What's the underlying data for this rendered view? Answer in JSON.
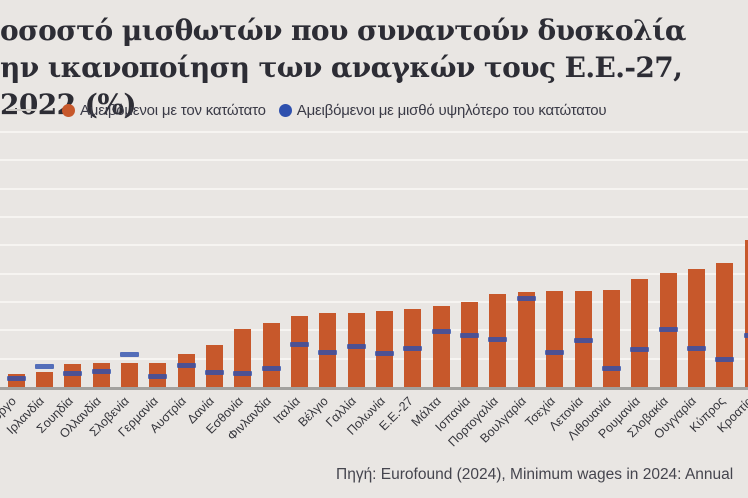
{
  "title": {
    "line1": "οσοστό μισθωτών που συναντούν δυσκολία",
    "line2": "ην ικανοποίηση των αναγκών τους Ε.Ε.-27, 2022 (%)"
  },
  "legend": [
    {
      "label": "Αμειβόμενοι με τον κατώτατο",
      "color": "#c7582b"
    },
    {
      "label": "Αμειβόμενοι με μισθό υψηλότερο του κατώτατου",
      "color": "#2e50ae"
    }
  ],
  "source": "Πηγή: Eurofound (2024), Minimum wages in 2024: Annual",
  "colors": {
    "background": "#e9e6e3",
    "gridline": "#f6f4f1",
    "axis_line": "#a3a19e",
    "bar_orange": "#c7582b",
    "tick_blue": "#2e50ae",
    "title_text": "#2d2d35",
    "label_text": "#36363c"
  },
  "chart_data": {
    "type": "bar",
    "title": "οσοστό μισθωτών που συναντούν δυσκολία ην ικανοποίηση των αναγκών τους Ε.Ε.-27, 2022 (%)",
    "xlabel": "",
    "ylabel": "",
    "ylim": [
      0,
      93
    ],
    "grid": true,
    "gridline_step": 10,
    "legend_position": "top",
    "categories": [
      "Λουξεμβούργο",
      "Ιρλανδία",
      "Σουηδία",
      "Ολλανδία",
      "Σλοβενία",
      "Γερμανία",
      "Αυστρία",
      "Δανία",
      "Εσθονία",
      "Φινλανδία",
      "Ιταλία",
      "Βέλγιο",
      "Γαλλία",
      "Πολωνία",
      "Ε.Ε.-27",
      "Μάλτα",
      "Ισπανία",
      "Πορτογαλία",
      "Βουλγαρία",
      "Τσεχία",
      "Λετονία",
      "Λιθουανία",
      "Ρουμανία",
      "Σλοβακία",
      "Ουγγαρία",
      "Κύπρος",
      "Κροατία"
    ],
    "series": [
      {
        "name": "Αμειβόμενοι με τον κατώτατο",
        "style": "bar",
        "color": "#c7582b",
        "values": [
          4.8,
          5.8,
          8.5,
          8.7,
          8.7,
          9,
          12,
          15.2,
          20.8,
          23,
          25.4,
          26.5,
          26.5,
          27,
          28,
          29,
          30.5,
          33,
          34,
          34.3,
          34.3,
          34.6,
          38.5,
          40.6,
          42,
          44,
          52.3
        ]
      },
      {
        "name": "Αμειβόμενοι με μισθό υψηλότερο του κατώτατου",
        "style": "tick",
        "color": "#2e50ae",
        "values": [
          3.2,
          7.5,
          5,
          6,
          11.8,
          4,
          8,
          5.3,
          5,
          6.8,
          15.2,
          12.4,
          14.8,
          12,
          14.1,
          19.8,
          18.7,
          17,
          31.5,
          12.4,
          16.6,
          6.8,
          13.5,
          20.5,
          14.1,
          10,
          18.7
        ]
      }
    ]
  }
}
